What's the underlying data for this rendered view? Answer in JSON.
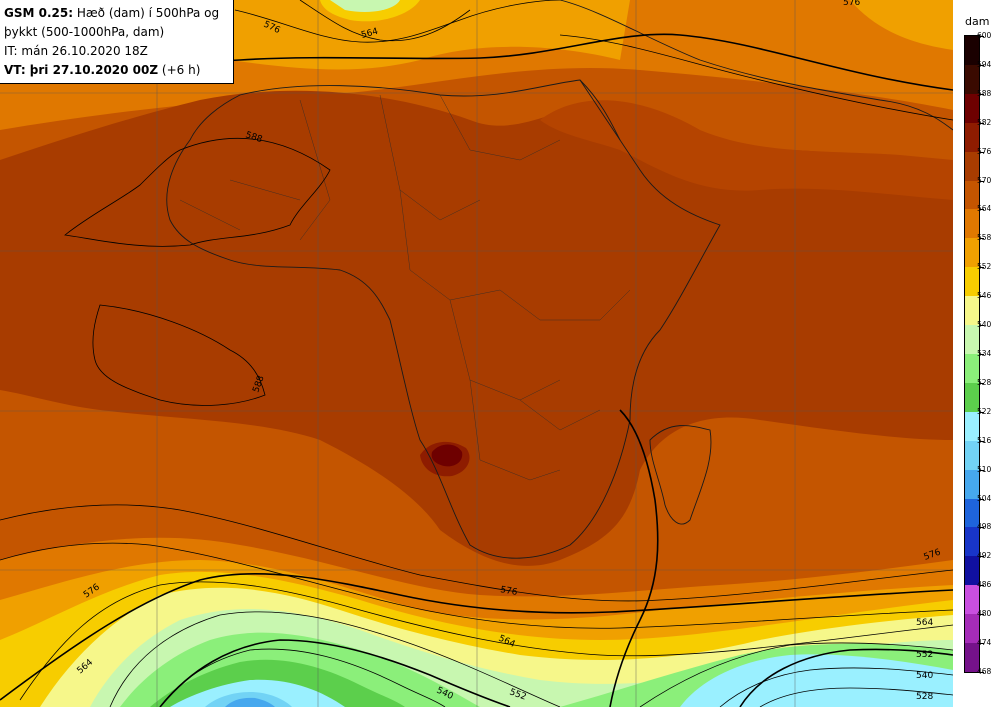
{
  "header": {
    "model": "GSM 0.25:",
    "title_rest": "Hæð (dam) í 500hPa og",
    "title_line2": "þykkt (500-1000hPa, dam)",
    "issue_time": "IT: mán 26.10.2020 18Z",
    "valid_label": "VT: þri 27.10.2020 00Z",
    "valid_offset": "(+6 h)"
  },
  "legend": {
    "unit": "dam",
    "levels": [
      {
        "value": "600",
        "color": "#1a0000"
      },
      {
        "value": "594",
        "color": "#3a0a00"
      },
      {
        "value": "588",
        "color": "#6e0000"
      },
      {
        "value": "582",
        "color": "#8e1c00"
      },
      {
        "value": "576",
        "color": "#a83c00"
      },
      {
        "value": "570",
        "color": "#c45500"
      },
      {
        "value": "564",
        "color": "#e07800"
      },
      {
        "value": "558",
        "color": "#f0a000"
      },
      {
        "value": "552",
        "color": "#f7cd00"
      },
      {
        "value": "546",
        "color": "#f6f78a"
      },
      {
        "value": "540",
        "color": "#c8f7b0"
      },
      {
        "value": "534",
        "color": "#8bef7a"
      },
      {
        "value": "528",
        "color": "#5ccf4c"
      },
      {
        "value": "522",
        "color": "#9af0ff"
      },
      {
        "value": "516",
        "color": "#72d3f5"
      },
      {
        "value": "510",
        "color": "#46a8ee"
      },
      {
        "value": "504",
        "color": "#1e64dc"
      },
      {
        "value": "498",
        "color": "#1835c8"
      },
      {
        "value": "492",
        "color": "#1010a0"
      },
      {
        "value": "486",
        "color": "#c94fe0"
      },
      {
        "value": "480",
        "color": "#a52cb8"
      },
      {
        "value": "474",
        "color": "#75128a"
      },
      {
        "value": "468",
        "color": "#4a0a60"
      }
    ]
  },
  "contour_labels": [
    "576",
    "564",
    "588",
    "588",
    "576",
    "576",
    "576",
    "564",
    "564",
    "564",
    "552",
    "540",
    "528",
    "552",
    "540",
    "576"
  ]
}
